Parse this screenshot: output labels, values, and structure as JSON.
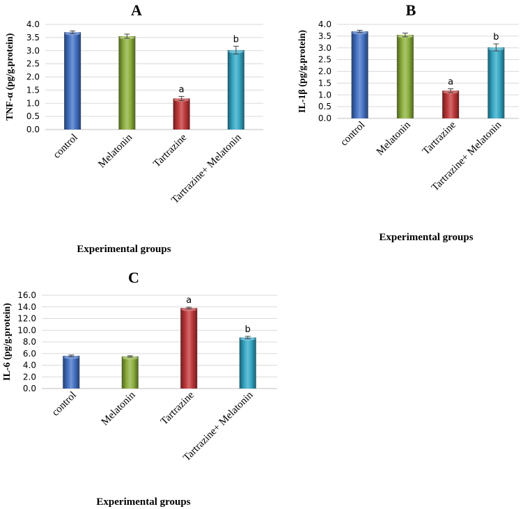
{
  "chart_data": [
    {
      "id": "A",
      "type": "bar",
      "title": "A",
      "xlabel": "Experimental groups",
      "ylabel": "TNF-α  (pg/g.protein)",
      "ylim": [
        0,
        4.0
      ],
      "yticks": [
        "0.0",
        "0.5",
        "1.0",
        "1.5",
        "2.0",
        "2.5",
        "3.0",
        "3.5",
        "4.0"
      ],
      "grid": true,
      "categories": [
        "control",
        "Melatonin",
        "Tartrazine",
        "Tartrazine+ Melatonin"
      ],
      "values": [
        3.7,
        3.55,
        1.18,
        3.02
      ],
      "errors": [
        0.05,
        0.08,
        0.08,
        0.15
      ],
      "labels": [
        "",
        "",
        "a",
        "b"
      ],
      "colors": [
        "#4472C4",
        "#8DB03E",
        "#C0393B",
        "#35A8C6"
      ]
    },
    {
      "id": "B",
      "type": "bar",
      "title": "B",
      "xlabel": "Experimental groups",
      "ylabel": "IL-1β (pg/g.protein)",
      "ylim": [
        0,
        4.0
      ],
      "yticks": [
        "0.0",
        "0.5",
        "1.0",
        "1.5",
        "2.0",
        "2.5",
        "3.0",
        "3.5",
        "4.0"
      ],
      "grid": true,
      "categories": [
        "control",
        "Melatonin",
        "Tartrazine",
        "Tartrazine+ Melatonin"
      ],
      "values": [
        3.7,
        3.55,
        1.18,
        3.02
      ],
      "errors": [
        0.05,
        0.08,
        0.08,
        0.15
      ],
      "labels": [
        "",
        "",
        "a",
        "b"
      ],
      "colors": [
        "#4472C4",
        "#8DB03E",
        "#C0393B",
        "#35A8C6"
      ]
    },
    {
      "id": "C",
      "type": "bar",
      "title": "C",
      "xlabel": "Experimental groups",
      "ylabel": "IL-6 (pg/g.protein)",
      "ylim": [
        0,
        16.0
      ],
      "yticks": [
        "0.0",
        "2.0",
        "4.0",
        "6.0",
        "8.0",
        "10.0",
        "12.0",
        "14.0",
        "16.0"
      ],
      "grid": true,
      "categories": [
        "control",
        "Melatonin",
        "Tartrazine",
        "Tartrazine+ Melatonin"
      ],
      "values": [
        5.6,
        5.5,
        13.8,
        8.75
      ],
      "errors": [
        0.15,
        0.12,
        0.15,
        0.2
      ],
      "labels": [
        "",
        "",
        "a",
        "b"
      ],
      "colors": [
        "#4472C4",
        "#8DB03E",
        "#C0393B",
        "#35A8C6"
      ]
    }
  ]
}
